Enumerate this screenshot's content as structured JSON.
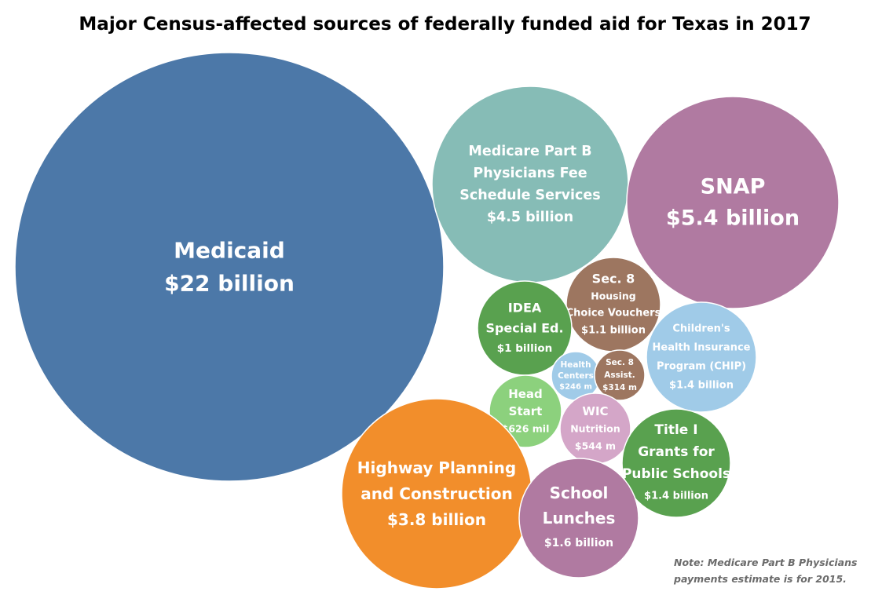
{
  "chart_data": {
    "type": "bubble",
    "title": "Major Census-affected sources of federally funded aid for Texas in 2017",
    "units": "USD",
    "bubbles": [
      {
        "label_lines": [
          "Medicaid",
          "$22 billion"
        ],
        "value": 22000000000,
        "color": "#4c78a8"
      },
      {
        "label_lines": [
          "Medicare Part B",
          "Physicians Fee",
          "Schedule Services",
          "$4.5 billion"
        ],
        "value": 4500000000,
        "color": "#86bcb6"
      },
      {
        "label_lines": [
          "SNAP",
          "$5.4 billion"
        ],
        "value": 5400000000,
        "color": "#b07aa1"
      },
      {
        "label_lines": [
          "Sec. 8",
          "Housing",
          "Choice Vouchers",
          "$1.1 billion"
        ],
        "value": 1100000000,
        "color": "#9d7660"
      },
      {
        "label_lines": [
          "IDEA",
          "Special Ed.",
          "$1 billion"
        ],
        "value": 1000000000,
        "color": "#59a14f"
      },
      {
        "label_lines": [
          "Children's",
          "Health Insurance",
          "Program (CHIP)",
          "$1.4 billion"
        ],
        "value": 1400000000,
        "color": "#a0cbe8"
      },
      {
        "label_lines": [
          "Health",
          "Centers",
          "$246 m"
        ],
        "value": 246000000,
        "color": "#a0cbe8"
      },
      {
        "label_lines": [
          "Sec. 8",
          "Assist.",
          "$314 m"
        ],
        "value": 314000000,
        "color": "#9d7660"
      },
      {
        "label_lines": [
          "Head",
          "Start",
          "$626 mil"
        ],
        "value": 626000000,
        "color": "#8cd17d"
      },
      {
        "label_lines": [
          "WIC",
          "Nutrition",
          "$544 m"
        ],
        "value": 544000000,
        "color": "#d4a6c8"
      },
      {
        "label_lines": [
          "Title I",
          "Grants for",
          "Public Schools",
          "$1.4 billion"
        ],
        "value": 1400000000,
        "color": "#59a14f"
      },
      {
        "label_lines": [
          "Highway Planning",
          "and Construction",
          "$3.8 billion"
        ],
        "value": 3800000000,
        "color": "#f28e2b"
      },
      {
        "label_lines": [
          "School",
          "Lunches",
          "$1.6 billion"
        ],
        "value": 1600000000,
        "color": "#b07aa1"
      }
    ],
    "note_lines": [
      "Note: Medicare Part B Physicians",
      "payments estimate is for 2015."
    ]
  }
}
